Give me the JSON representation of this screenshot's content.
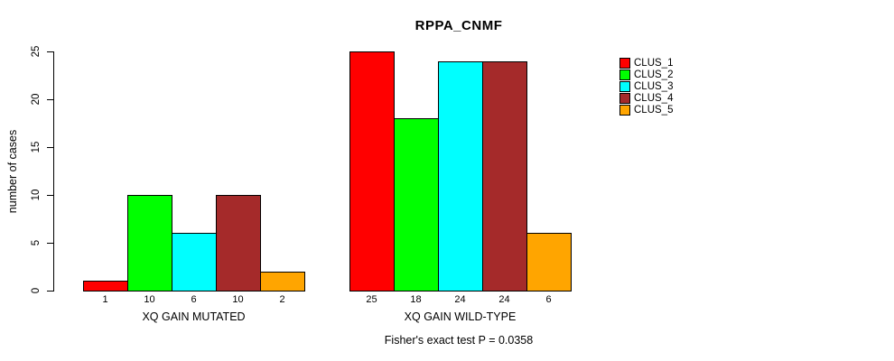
{
  "chart_data": {
    "type": "bar",
    "title": "RPPA_CNMF",
    "ylabel": "number of cases",
    "xlabel": "",
    "ylim": [
      0,
      25
    ],
    "yticks": [
      0,
      5,
      10,
      15,
      20,
      25
    ],
    "grid": false,
    "legend_position": "right",
    "legend": [
      "CLUS_1",
      "CLUS_2",
      "CLUS_3",
      "CLUS_4",
      "CLUS_5"
    ],
    "colors": [
      "#FF0000",
      "#00FF00",
      "#00FFFF",
      "#A52A2A",
      "#FFA500"
    ],
    "categories": [
      "XQ GAIN MUTATED",
      "XQ GAIN WILD-TYPE"
    ],
    "series": [
      {
        "name": "CLUS_1",
        "values": [
          1,
          25
        ]
      },
      {
        "name": "CLUS_2",
        "values": [
          10,
          18
        ]
      },
      {
        "name": "CLUS_3",
        "values": [
          6,
          24
        ]
      },
      {
        "name": "CLUS_4",
        "values": [
          10,
          24
        ]
      },
      {
        "name": "CLUS_5",
        "values": [
          2,
          6
        ]
      }
    ],
    "groups": [
      {
        "label": "XQ GAIN MUTATED",
        "values": [
          1,
          10,
          6,
          10,
          2
        ]
      },
      {
        "label": "XQ GAIN WILD-TYPE",
        "values": [
          25,
          18,
          24,
          24,
          6
        ]
      }
    ],
    "bar_value_labels_shown": true,
    "footer": "Fisher's exact test P = 0.0358"
  }
}
